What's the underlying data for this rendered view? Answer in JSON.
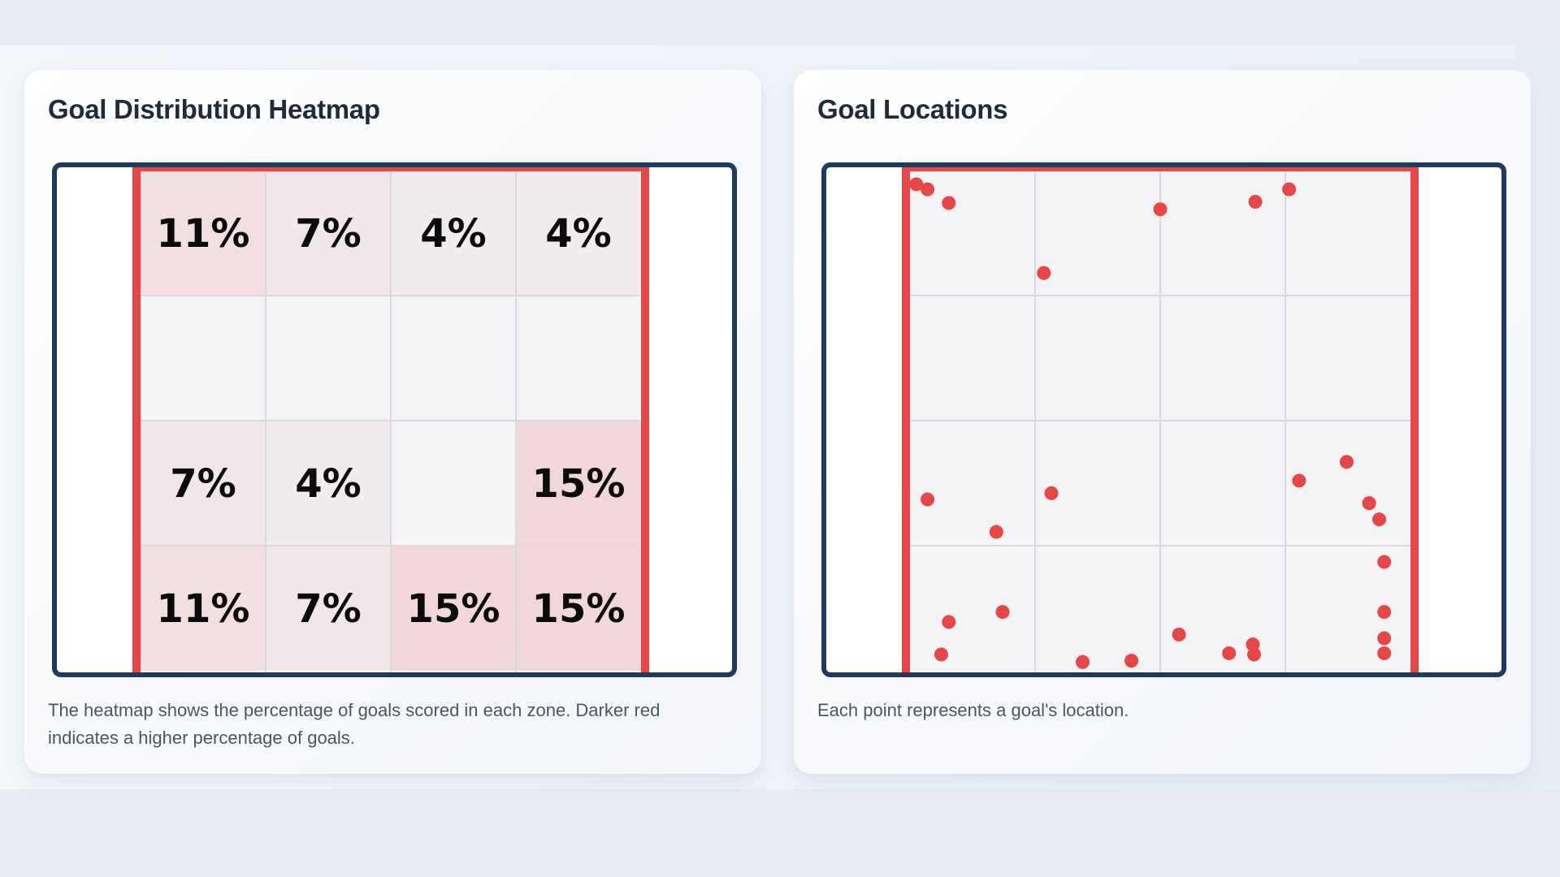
{
  "panels": {
    "heatmap": {
      "title": "Goal Distribution Heatmap",
      "caption": "The heatmap shows the percentage of goals scored in each zone. Darker red indicates a higher percentage of goals."
    },
    "scatter": {
      "title": "Goal Locations",
      "caption": "Each point represents a goal's location."
    }
  },
  "colors": {
    "frame": "#1e3a5f",
    "posts": "#e84545",
    "grid": "#d6d9df",
    "empty_cell": "#f4f4f6",
    "heat_max": "#f2d7da",
    "point": "#e84545"
  },
  "chart_data": [
    {
      "type": "heatmap",
      "rows": 4,
      "cols": 4,
      "value_format": "percent",
      "values": [
        [
          11,
          7,
          4,
          4
        ],
        [
          null,
          null,
          null,
          null
        ],
        [
          7,
          4,
          null,
          15
        ],
        [
          11,
          7,
          15,
          15
        ]
      ],
      "labels": [
        [
          "11%",
          "7%",
          "4%",
          "4%"
        ],
        [
          "",
          "",
          "",
          ""
        ],
        [
          "7%",
          "4%",
          "",
          "15%"
        ],
        [
          "11%",
          "7%",
          "15%",
          "15%"
        ]
      ]
    },
    {
      "type": "scatter",
      "xlim": [
        0,
        4
      ],
      "ylim": [
        0,
        4
      ],
      "grid": true,
      "x": [
        0.05,
        0.14,
        0.31,
        1.07,
        2.0,
        2.76,
        3.03,
        0.14,
        1.13,
        0.69,
        3.11,
        3.49,
        3.67,
        3.75,
        3.79,
        0.31,
        0.74,
        0.25,
        1.38,
        1.77,
        2.15,
        2.55,
        2.74,
        2.75,
        3.79,
        3.79,
        3.79
      ],
      "y": [
        0.11,
        0.15,
        0.26,
        0.82,
        0.31,
        0.25,
        0.15,
        2.63,
        2.58,
        2.89,
        2.48,
        2.33,
        2.66,
        2.79,
        3.13,
        3.61,
        3.53,
        3.87,
        3.93,
        3.92,
        3.71,
        3.86,
        3.79,
        3.87,
        3.53,
        3.74,
        3.86
      ]
    }
  ]
}
